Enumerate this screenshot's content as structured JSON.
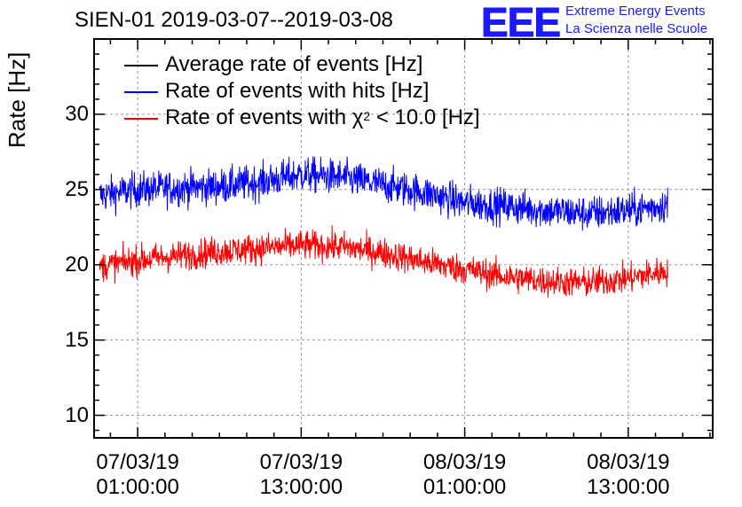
{
  "header": {
    "title": "SIEN-01 2019-03-07--2019-03-08",
    "logo_text": "EEE",
    "logo_line1": "Extreme Energy Events",
    "logo_line2": "La Scienza nelle Scuole"
  },
  "colors": {
    "average": "#000000",
    "hits": "#0000ff",
    "chi2": "#ff0000",
    "grid": "#999999",
    "logo": "#1a1aff"
  },
  "legend": {
    "average_label": "Average rate of events [Hz]",
    "hits_label": "Rate of events with hits [Hz]",
    "chi2_label_prefix": "Rate of events with χ",
    "chi2_label_sup": "2",
    "chi2_label_suffix": " < 10.0 [Hz]"
  },
  "chart_data": {
    "type": "line",
    "title": "SIEN-01 2019-03-07--2019-03-08",
    "ylabel": "Rate [Hz]",
    "xlabel": "",
    "ylim": [
      8.5,
      35
    ],
    "xlim_hours": [
      -3.2,
      42.2
    ],
    "yticks": [
      10,
      15,
      20,
      25,
      30
    ],
    "ytick_labels": [
      "10",
      "15",
      "20",
      "25",
      "30"
    ],
    "xticks_hours": [
      0,
      12,
      24,
      36
    ],
    "xtick_labels": [
      {
        "date": "07/03/19",
        "time": "01:00:00"
      },
      {
        "date": "07/03/19",
        "time": "13:00:00"
      },
      {
        "date": "08/03/19",
        "time": "01:00:00"
      },
      {
        "date": "08/03/19",
        "time": "13:00:00"
      }
    ],
    "x_hours_since": "07/03/19 01:00:00",
    "grid": true,
    "series": [
      {
        "name": "Rate of events with hits [Hz]",
        "color": "#0000ff",
        "x_hours": [
          -2.8,
          0,
          3,
          6,
          9,
          12,
          15,
          18,
          21,
          24,
          27,
          30,
          33,
          36,
          38.9
        ],
        "values": [
          24.6,
          25.0,
          25.1,
          25.2,
          25.5,
          26.0,
          25.8,
          25.3,
          24.8,
          24.1,
          23.9,
          23.6,
          23.4,
          23.6,
          24.0
        ],
        "noise_amplitude": 1.3
      },
      {
        "name": "Rate of events with χ2 < 10.0 [Hz]",
        "color": "#ff0000",
        "x_hours": [
          -2.8,
          0,
          3,
          6,
          9,
          12,
          15,
          18,
          21,
          24,
          27,
          30,
          33,
          36,
          38.9
        ],
        "values": [
          19.9,
          20.3,
          20.6,
          20.9,
          21.1,
          21.3,
          21.2,
          20.8,
          20.2,
          19.7,
          19.2,
          18.9,
          18.8,
          19.1,
          19.6
        ],
        "noise_amplitude": 1.1
      }
    ]
  }
}
